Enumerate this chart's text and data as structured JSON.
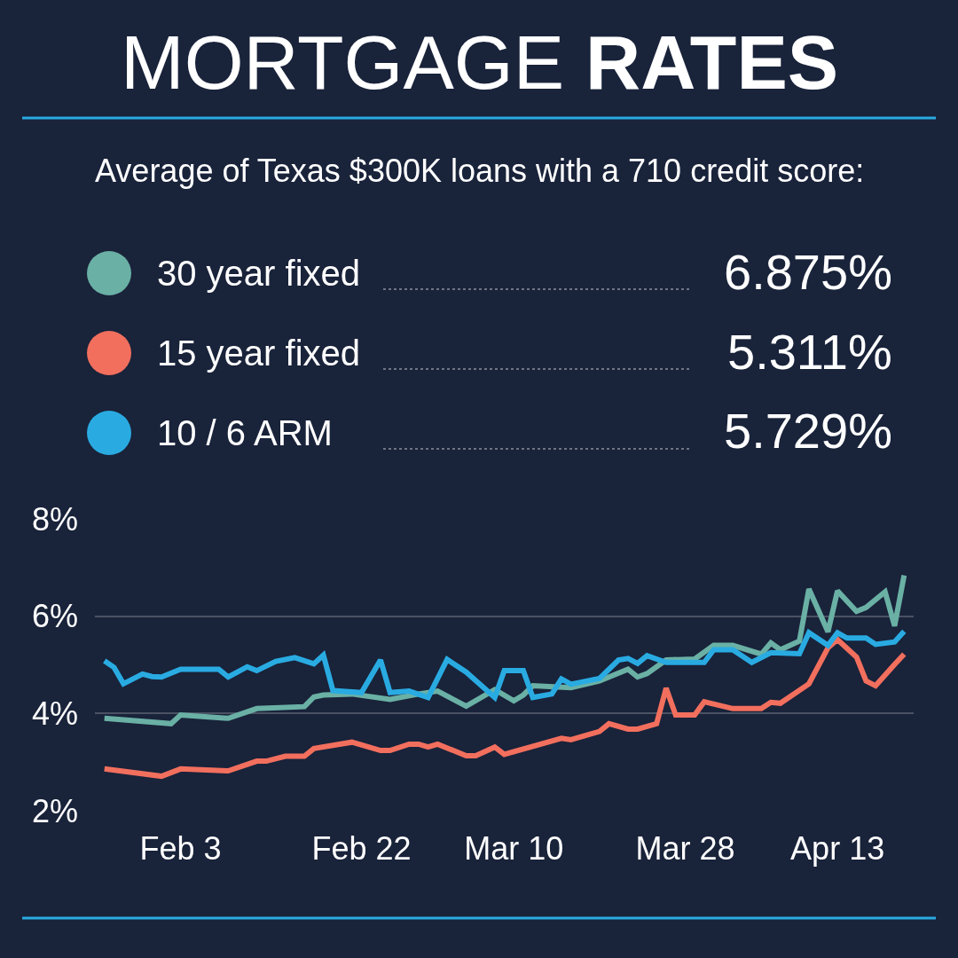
{
  "chart_data": {
    "type": "line",
    "title": "MORTGAGE RATES",
    "subtitle": "Average of Texas $300K loans with a 710 credit score:",
    "series": [
      {
        "name": "30 year fixed",
        "color": "#6ab0a5",
        "x": [
          "--01-26",
          "--02-02",
          "--02-03",
          "--02-08",
          "--02-11",
          "--02-16",
          "--02-17",
          "--02-18",
          "--02-21",
          "--02-25",
          "--02-28",
          "--03-02",
          "--03-05",
          "--03-08",
          "--03-10",
          "--03-11",
          "--03-12",
          "--03-16",
          "--03-19",
          "--03-22",
          "--03-23",
          "--03-24",
          "--03-26",
          "--03-29",
          "--03-31",
          "--04-02",
          "--04-05",
          "--04-06",
          "--04-07",
          "--04-09",
          "--04-10",
          "--04-12",
          "--04-13",
          "--04-15",
          "--04-16",
          "--04-18",
          "--04-19",
          "--04-20"
        ],
        "values": [
          3.9,
          3.79,
          3.97,
          3.9,
          4.1,
          4.14,
          4.34,
          4.38,
          4.4,
          4.29,
          4.4,
          4.46,
          4.15,
          4.49,
          4.26,
          4.38,
          4.57,
          4.53,
          4.67,
          4.91,
          4.75,
          4.82,
          5.1,
          5.12,
          5.4,
          5.4,
          5.22,
          5.45,
          5.31,
          5.49,
          6.56,
          5.68,
          6.52,
          6.1,
          6.18,
          6.5,
          5.8,
          6.84
        ]
      },
      {
        "name": "15 year fixed",
        "color": "#f26f5e",
        "x": [
          "--01-26",
          "--02-01",
          "--02-03",
          "--02-08",
          "--02-11",
          "--02-12",
          "--02-14",
          "--02-16",
          "--02-17",
          "--02-21",
          "--02-24",
          "--02-25",
          "--02-27",
          "--02-28",
          "--03-01",
          "--03-02",
          "--03-05",
          "--03-06",
          "--03-08",
          "--03-09",
          "--03-15",
          "--03-16",
          "--03-19",
          "--03-20",
          "--03-22",
          "--03-23",
          "--03-25",
          "--03-26",
          "--03-27",
          "--03-29",
          "--03-30",
          "--04-02",
          "--04-05",
          "--04-06",
          "--04-07",
          "--04-10",
          "--04-12",
          "--04-13",
          "--04-15",
          "--04-16",
          "--04-17",
          "--04-19",
          "--04-20"
        ],
        "values": [
          2.86,
          2.71,
          2.86,
          2.82,
          3.02,
          3.02,
          3.12,
          3.12,
          3.28,
          3.41,
          3.24,
          3.24,
          3.37,
          3.37,
          3.31,
          3.37,
          3.13,
          3.13,
          3.31,
          3.16,
          3.49,
          3.46,
          3.63,
          3.79,
          3.68,
          3.68,
          3.79,
          4.52,
          3.97,
          3.97,
          4.24,
          4.1,
          4.1,
          4.23,
          4.21,
          4.61,
          5.35,
          5.52,
          5.16,
          4.67,
          4.57,
          5.01,
          5.22
        ]
      },
      {
        "name": "10 / 6 ARM",
        "color": "#29abe2",
        "x": [
          "--01-26",
          "--01-27",
          "--01-28",
          "--01-30",
          "--01-31",
          "--02-01",
          "--02-03",
          "--02-07",
          "--02-08",
          "--02-10",
          "--02-11",
          "--02-13",
          "--02-15",
          "--02-17",
          "--02-18",
          "--02-19",
          "--02-22",
          "--02-24",
          "--02-25",
          "--02-27",
          "--03-01",
          "--03-03",
          "--03-05",
          "--03-08",
          "--03-09",
          "--03-11",
          "--03-12",
          "--03-14",
          "--03-15",
          "--03-16",
          "--03-19",
          "--03-21",
          "--03-22",
          "--03-23",
          "--03-24",
          "--03-26",
          "--03-30",
          "--03-31",
          "--04-02",
          "--04-04",
          "--04-06",
          "--04-09",
          "--04-10",
          "--04-12",
          "--04-13",
          "--04-14",
          "--04-16",
          "--04-17",
          "--04-19",
          "--04-20"
        ],
        "values": [
          5.08,
          4.95,
          4.61,
          4.81,
          4.76,
          4.75,
          4.91,
          4.91,
          4.75,
          4.96,
          4.88,
          5.07,
          5.15,
          5.02,
          5.2,
          4.47,
          4.43,
          5.1,
          4.43,
          4.46,
          4.33,
          5.11,
          4.85,
          4.33,
          4.88,
          4.88,
          4.33,
          4.4,
          4.71,
          4.6,
          4.72,
          5.1,
          5.13,
          5.03,
          5.19,
          5.05,
          5.05,
          5.31,
          5.31,
          5.05,
          5.25,
          5.23,
          5.66,
          5.4,
          5.66,
          5.55,
          5.55,
          5.42,
          5.47,
          5.69
        ]
      }
    ],
    "xlim": [
      "--01-25",
      "--04-21"
    ],
    "xticks": [
      {
        "value": "--02-03",
        "label": "Feb 3"
      },
      {
        "value": "--02-22",
        "label": "Feb 22"
      },
      {
        "value": "--03-10",
        "label": "Mar 10"
      },
      {
        "value": "--03-28",
        "label": "Mar 28"
      },
      {
        "value": "--04-13",
        "label": "Apr 13"
      }
    ],
    "ylim": [
      2,
      8
    ],
    "yticks": [
      {
        "value": 2,
        "label": "2%"
      },
      {
        "value": 4,
        "label": "4%"
      },
      {
        "value": 6,
        "label": "6%"
      },
      {
        "value": 8,
        "label": "8%"
      }
    ],
    "grid": "y",
    "legend": "top",
    "annotations": [
      "6.875%",
      "5.311%",
      "5.729%"
    ]
  }
}
